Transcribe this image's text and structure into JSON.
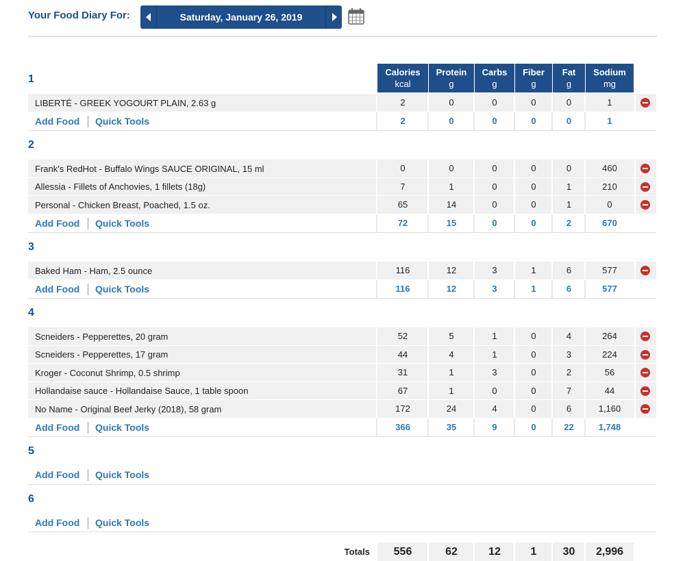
{
  "header": {
    "label": "Your Food Diary For:",
    "date": "Saturday, January 26, 2019"
  },
  "columns": [
    {
      "name": "Calories",
      "unit": "kcal"
    },
    {
      "name": "Protein",
      "unit": "g"
    },
    {
      "name": "Carbs",
      "unit": "g"
    },
    {
      "name": "Fiber",
      "unit": "g"
    },
    {
      "name": "Fat",
      "unit": "g"
    },
    {
      "name": "Sodium",
      "unit": "mg"
    }
  ],
  "actions": {
    "add_food": "Add Food",
    "quick_tools": "Quick Tools"
  },
  "meals": [
    {
      "title": "1",
      "foods": [
        {
          "name": "LIBERTÉ - GREEK YOGOURT PLAIN, 2.63 g",
          "values": [
            2,
            0,
            0,
            0,
            0,
            1
          ]
        }
      ],
      "totals": [
        2,
        0,
        0,
        0,
        0,
        1
      ]
    },
    {
      "title": "2",
      "foods": [
        {
          "name": "Frank's RedHot - Buffalo Wings SAUCE ORIGINAL, 15 ml",
          "values": [
            0,
            0,
            0,
            0,
            0,
            460
          ]
        },
        {
          "name": "Allessia - Fillets of Anchovies, 1 fillets (18g)",
          "values": [
            7,
            1,
            0,
            0,
            1,
            210
          ]
        },
        {
          "name": "Personal - Chicken Breast, Poached, 1.5 oz.",
          "values": [
            65,
            14,
            0,
            0,
            1,
            0
          ]
        }
      ],
      "totals": [
        72,
        15,
        0,
        0,
        2,
        670
      ]
    },
    {
      "title": "3",
      "foods": [
        {
          "name": "Baked Ham - Ham, 2.5 ounce",
          "values": [
            116,
            12,
            3,
            1,
            6,
            577
          ]
        }
      ],
      "totals": [
        116,
        12,
        3,
        1,
        6,
        577
      ]
    },
    {
      "title": "4",
      "foods": [
        {
          "name": "Scneiders - Pepperettes, 20 gram",
          "values": [
            52,
            5,
            1,
            0,
            4,
            264
          ]
        },
        {
          "name": "Scneiders - Pepperettes, 17 gram",
          "values": [
            44,
            4,
            1,
            0,
            3,
            224
          ]
        },
        {
          "name": "Kroger - Coconut Shrimp, 0.5 shrimp",
          "values": [
            31,
            1,
            3,
            0,
            2,
            56
          ]
        },
        {
          "name": "Hollandaise sauce - Hollandaise Sauce, 1 table spoon",
          "values": [
            67,
            1,
            0,
            0,
            7,
            44
          ]
        },
        {
          "name": "No Name - Original Beef Jerky (2018), 58 gram",
          "values": [
            172,
            24,
            4,
            0,
            6,
            "1,160"
          ]
        }
      ],
      "totals": [
        366,
        35,
        9,
        0,
        22,
        "1,748"
      ]
    },
    {
      "title": "5",
      "foods": [],
      "totals": []
    },
    {
      "title": "6",
      "foods": [],
      "totals": []
    }
  ],
  "totals": {
    "label": "Totals",
    "values": [
      556,
      62,
      12,
      1,
      30,
      "2,996"
    ]
  }
}
